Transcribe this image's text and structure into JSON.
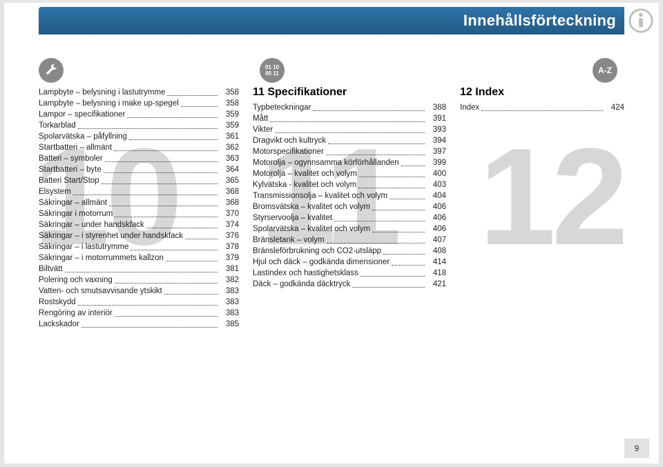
{
  "header": {
    "title": "Innehållsförteckning"
  },
  "footer": {
    "page_number": "9"
  },
  "columns": {
    "col1": {
      "big_number": "10",
      "entries": [
        {
          "label": "Lampbyte – belysning i lastutrymme",
          "page": "358"
        },
        {
          "label": "Lampbyte – belysning i make up-spegel",
          "page": "358"
        },
        {
          "label": "Lampor – specifikationer",
          "page": "359"
        },
        {
          "label": "Torkarblad",
          "page": "359"
        },
        {
          "label": "Spolarvätska – påfyllning",
          "page": "361"
        },
        {
          "label": "Startbatteri – allmänt",
          "page": "362"
        },
        {
          "label": "Batteri – symboler",
          "page": "363"
        },
        {
          "label": "Startbatteri – byte",
          "page": "364"
        },
        {
          "label": "Batteri Start/Stop",
          "page": "365"
        },
        {
          "label": "Elsystem",
          "page": "368"
        },
        {
          "label": "Säkringar – allmänt",
          "page": "368"
        },
        {
          "label": "Säkringar i motorrum",
          "page": "370"
        },
        {
          "label": "Säkringar – under handskfack",
          "page": "374"
        },
        {
          "label": "Säkringar – i styrenhet under handskfack",
          "page": "376"
        },
        {
          "label": "Säkringar – i lastutrymme",
          "page": "378"
        },
        {
          "label": "Säkringar – i motorrummets kallzon",
          "page": "379"
        },
        {
          "label": "Biltvätt",
          "page": "381"
        },
        {
          "label": "Polering och vaxning",
          "page": "382"
        },
        {
          "label": "Vatten- och smutsavvisande ytskikt",
          "page": "383"
        },
        {
          "label": "Rostskydd",
          "page": "383"
        },
        {
          "label": "Rengöring av interiör",
          "page": "383"
        },
        {
          "label": "Lackskador",
          "page": "385"
        }
      ]
    },
    "col2": {
      "big_number": "11",
      "section": "11 Specifikationer",
      "entries": [
        {
          "label": "Typbeteckningar",
          "page": "388"
        },
        {
          "label": "Mått",
          "page": "391"
        },
        {
          "label": "Vikter",
          "page": "393"
        },
        {
          "label": "Dragvikt och kultryck",
          "page": "394"
        },
        {
          "label": "Motorspecifikationer",
          "page": "397"
        },
        {
          "label": "Motorolja – ogynnsamma körförhållanden",
          "page": "399"
        },
        {
          "label": "Motorolja – kvalitet och volym",
          "page": "400"
        },
        {
          "label": "Kylvätska - kvalitet och volym",
          "page": "403"
        },
        {
          "label": "Transmissionsolja – kvalitet och volym",
          "page": "404"
        },
        {
          "label": "Bromsvätska – kvalitet och volym",
          "page": "406"
        },
        {
          "label": "Styrservoolja – kvalitet",
          "page": "406"
        },
        {
          "label": "Spolarvätska – kvalitet och volym",
          "page": "406"
        },
        {
          "label": "Bränsletank – volym",
          "page": "407"
        },
        {
          "label": "Bränsleförbrukning och CO2-utsläpp",
          "page": "408"
        },
        {
          "label": "Hjul och däck – godkända dimensioner",
          "page": "414"
        },
        {
          "label": "Lastindex och hastighetsklass",
          "page": "418"
        },
        {
          "label": "Däck – godkända däcktryck",
          "page": "421"
        }
      ]
    },
    "col3": {
      "big_number": "12",
      "section": "12 Index",
      "entries": [
        {
          "label": "Index",
          "page": "424"
        }
      ]
    }
  },
  "colors": {
    "header_gradient_top": "#2f73a8",
    "header_gradient_bottom": "#235a85",
    "big_number": "#d7d7d7",
    "icon_grey": "#888888",
    "page_bg": "#ffffff",
    "canvas_bg": "#e5e5e5"
  }
}
